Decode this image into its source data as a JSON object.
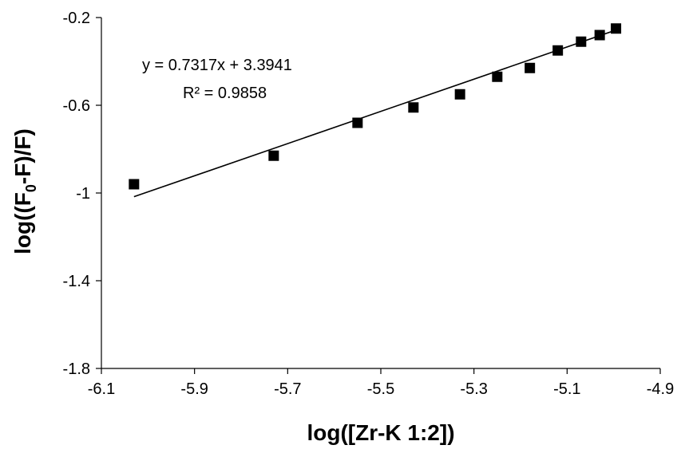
{
  "chart_data": {
    "type": "scatter",
    "title": "",
    "xlabel": "log([Zr-K 1:2])",
    "ylabel_parts": {
      "prefix": "log((F",
      "subscript": "0",
      "suffix": "-F)/F)"
    },
    "xlim": [
      -6.1,
      -4.9
    ],
    "ylim": [
      -1.8,
      -0.2
    ],
    "x_ticks": [
      -6.1,
      -5.9,
      -5.7,
      -5.5,
      -5.3,
      -5.1,
      -4.9
    ],
    "x_tick_labels": [
      "-6.1",
      "-5.9",
      "-5.7",
      "-5.5",
      "-5.3",
      "-5.1",
      "-4.9"
    ],
    "y_ticks": [
      -0.2,
      -0.6,
      -1.0,
      -1.4,
      -1.8
    ],
    "y_tick_labels": [
      "-0.2",
      "-0.6",
      "-1",
      "-1.4",
      "-1.8"
    ],
    "grid": false,
    "marker": "square",
    "marker_color": "#000000",
    "series": [
      {
        "points": [
          {
            "x": -6.03,
            "y": -0.96
          },
          {
            "x": -5.73,
            "y": -0.83
          },
          {
            "x": -5.55,
            "y": -0.68
          },
          {
            "x": -5.43,
            "y": -0.61
          },
          {
            "x": -5.33,
            "y": -0.55
          },
          {
            "x": -5.25,
            "y": -0.47
          },
          {
            "x": -5.18,
            "y": -0.43
          },
          {
            "x": -5.12,
            "y": -0.35
          },
          {
            "x": -5.07,
            "y": -0.31
          },
          {
            "x": -5.03,
            "y": -0.28
          },
          {
            "x": -4.995,
            "y": -0.25
          }
        ]
      }
    ],
    "trendline": {
      "type": "linear",
      "x_range": [
        -6.03,
        -4.995
      ],
      "y_range": [
        -1.017,
        -0.257
      ],
      "equation_label": "y = 0.7317x + 3.3941",
      "r2_label": "R² = 0.9858"
    }
  }
}
